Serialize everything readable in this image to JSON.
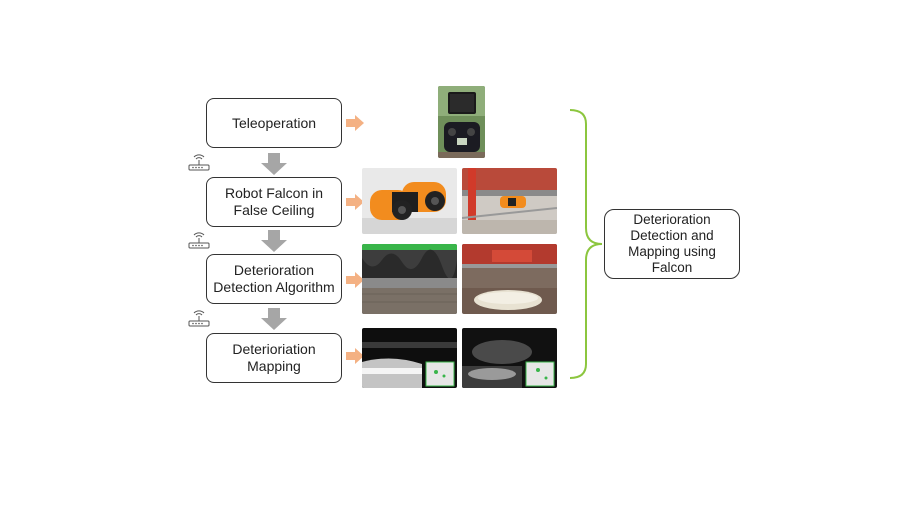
{
  "steps": [
    {
      "label": "Teleoperation"
    },
    {
      "label": "Robot Falcon in\nFalse Ceiling"
    },
    {
      "label": "Deterioration\nDetection Algorithm"
    },
    {
      "label": "Deterioriation\nMapping"
    }
  ],
  "summary": {
    "label": "Deterioration\nDetection and\nMapping using\nFalcon"
  },
  "colors": {
    "arrow_right": "#F4B183",
    "arrow_down": "#A6A6A6",
    "brace": "#8CC63F",
    "box_border": "#333333",
    "robot_orange": "#F28C1E",
    "detection_bar": "#39B54A"
  },
  "icons": {
    "wireless": "wifi-router-icon",
    "photo_controller": "remote-controller-photo",
    "photo_robot": "robot-photo",
    "photo_detection": "detection-photo",
    "photo_mapping": "mapping-photo"
  }
}
